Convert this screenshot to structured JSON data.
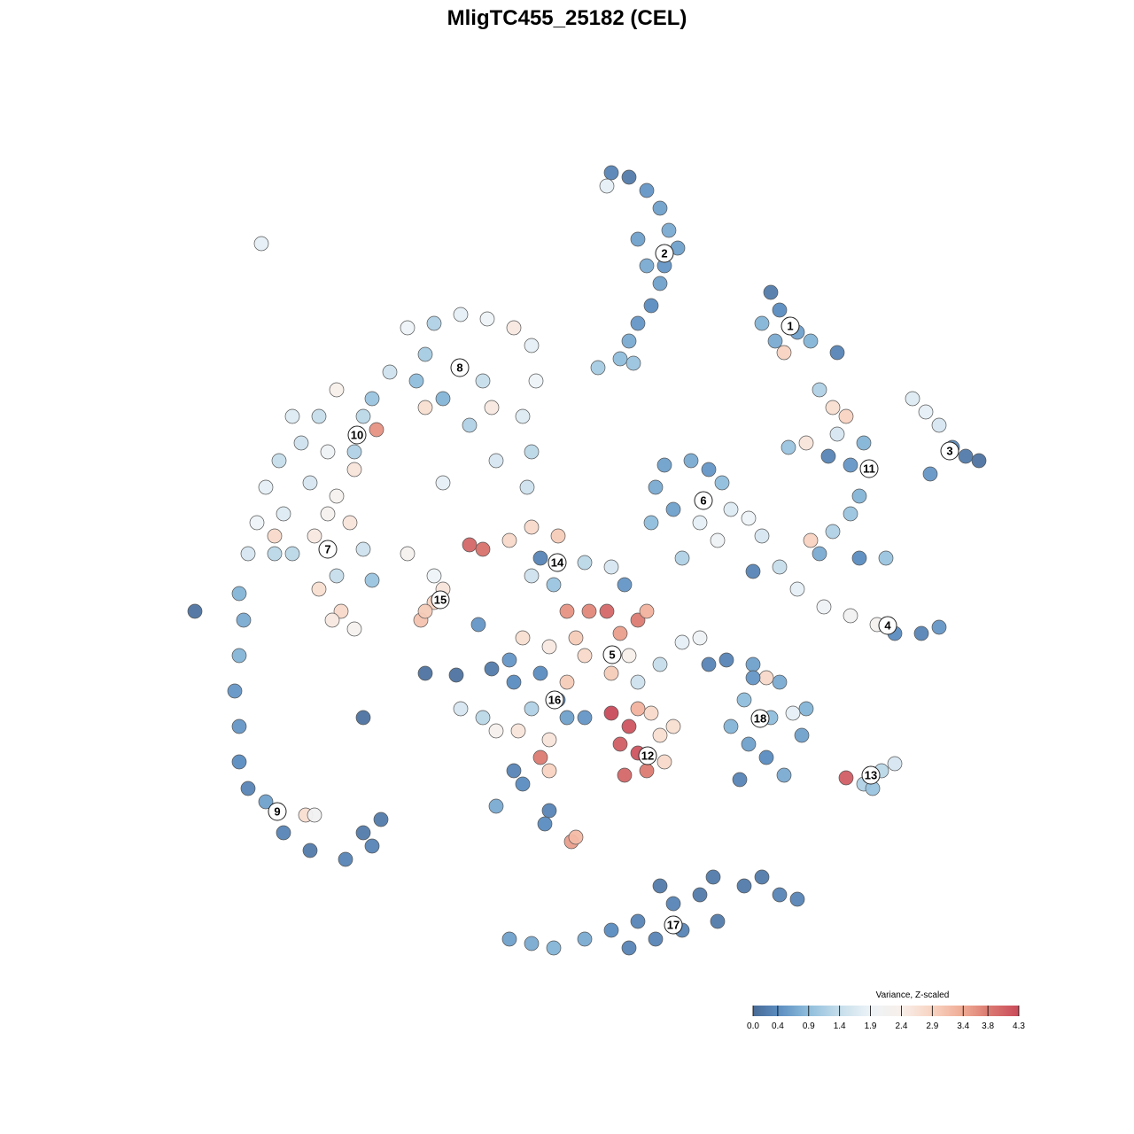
{
  "chart_data": {
    "type": "scatter",
    "title": "MligTC455_25182 (CEL)",
    "xlim": [
      200,
      1120
    ],
    "ylim": [
      1110,
      170
    ],
    "points": [
      [
        690,
        195,
        0.3
      ],
      [
        710,
        200,
        0.2
      ],
      [
        730,
        215,
        0.5
      ],
      [
        745,
        235,
        0.6
      ],
      [
        755,
        260,
        0.7
      ],
      [
        765,
        280,
        0.6
      ],
      [
        750,
        300,
        0.5
      ],
      [
        745,
        320,
        0.6
      ],
      [
        735,
        345,
        0.4
      ],
      [
        720,
        365,
        0.5
      ],
      [
        710,
        385,
        0.7
      ],
      [
        700,
        405,
        0.9
      ],
      [
        675,
        415,
        1.1
      ],
      [
        715,
        410,
        1.0
      ],
      [
        720,
        270,
        0.6
      ],
      [
        730,
        300,
        0.7
      ],
      [
        685,
        210,
        1.8
      ],
      [
        870,
        330,
        0.2
      ],
      [
        880,
        350,
        0.4
      ],
      [
        860,
        365,
        0.8
      ],
      [
        900,
        375,
        0.6
      ],
      [
        875,
        385,
        0.7
      ],
      [
        885,
        398,
        2.9
      ],
      [
        915,
        385,
        0.8
      ],
      [
        945,
        398,
        0.3
      ],
      [
        1030,
        450,
        1.7
      ],
      [
        1045,
        465,
        1.8
      ],
      [
        1060,
        480,
        1.6
      ],
      [
        1075,
        505,
        0.4
      ],
      [
        1090,
        515,
        0.2
      ],
      [
        1105,
        520,
        0.1
      ],
      [
        1050,
        535,
        0.5
      ],
      [
        925,
        440,
        1.2
      ],
      [
        940,
        460,
        2.7
      ],
      [
        955,
        470,
        2.9
      ],
      [
        945,
        490,
        1.6
      ],
      [
        910,
        500,
        2.6
      ],
      [
        890,
        505,
        1.0
      ],
      [
        935,
        515,
        0.3
      ],
      [
        960,
        525,
        0.5
      ],
      [
        975,
        500,
        0.8
      ],
      [
        970,
        560,
        0.8
      ],
      [
        960,
        580,
        1.0
      ],
      [
        940,
        600,
        1.2
      ],
      [
        915,
        610,
        2.9
      ],
      [
        970,
        630,
        0.4
      ],
      [
        1000,
        630,
        1.0
      ],
      [
        925,
        625,
        0.7
      ],
      [
        750,
        525,
        0.6
      ],
      [
        780,
        520,
        0.7
      ],
      [
        800,
        530,
        0.5
      ],
      [
        815,
        545,
        0.9
      ],
      [
        740,
        550,
        0.7
      ],
      [
        760,
        575,
        0.6
      ],
      [
        735,
        590,
        0.9
      ],
      [
        790,
        590,
        1.8
      ],
      [
        810,
        610,
        2.0
      ],
      [
        825,
        575,
        1.7
      ],
      [
        770,
        630,
        1.2
      ],
      [
        845,
        585,
        1.9
      ],
      [
        860,
        605,
        1.6
      ],
      [
        880,
        640,
        1.4
      ],
      [
        900,
        665,
        1.8
      ],
      [
        930,
        685,
        2.0
      ],
      [
        960,
        695,
        2.1
      ],
      [
        990,
        705,
        2.2
      ],
      [
        1010,
        715,
        0.4
      ],
      [
        1040,
        715,
        0.3
      ],
      [
        1060,
        708,
        0.5
      ],
      [
        850,
        645,
        0.3
      ],
      [
        460,
        370,
        1.9
      ],
      [
        490,
        365,
        1.2
      ],
      [
        520,
        355,
        1.8
      ],
      [
        550,
        360,
        1.9
      ],
      [
        580,
        370,
        2.5
      ],
      [
        600,
        390,
        1.8
      ],
      [
        605,
        430,
        1.9
      ],
      [
        590,
        470,
        1.7
      ],
      [
        600,
        510,
        1.3
      ],
      [
        595,
        550,
        1.5
      ],
      [
        560,
        520,
        1.6
      ],
      [
        530,
        480,
        1.2
      ],
      [
        500,
        450,
        0.8
      ],
      [
        470,
        430,
        0.9
      ],
      [
        440,
        420,
        1.5
      ],
      [
        420,
        450,
        1.0
      ],
      [
        480,
        460,
        2.7
      ],
      [
        545,
        430,
        1.4
      ],
      [
        480,
        400,
        1.1
      ],
      [
        555,
        460,
        2.5
      ],
      [
        330,
        470,
        1.7
      ],
      [
        360,
        470,
        1.4
      ],
      [
        380,
        440,
        2.4
      ],
      [
        410,
        470,
        1.3
      ],
      [
        425,
        485,
        3.6
      ],
      [
        400,
        510,
        1.2
      ],
      [
        370,
        510,
        2.0
      ],
      [
        340,
        500,
        1.5
      ],
      [
        315,
        520,
        1.4
      ],
      [
        300,
        550,
        1.8
      ],
      [
        350,
        545,
        1.6
      ],
      [
        380,
        560,
        2.2
      ],
      [
        320,
        580,
        1.7
      ],
      [
        400,
        530,
        2.6
      ],
      [
        290,
        590,
        1.9
      ],
      [
        310,
        605,
        2.8
      ],
      [
        330,
        625,
        1.3
      ],
      [
        355,
        605,
        2.5
      ],
      [
        370,
        580,
        2.2
      ],
      [
        395,
        590,
        2.6
      ],
      [
        410,
        620,
        1.5
      ],
      [
        380,
        650,
        1.4
      ],
      [
        420,
        655,
        1.0
      ],
      [
        360,
        665,
        2.7
      ],
      [
        385,
        690,
        2.8
      ],
      [
        400,
        710,
        2.2
      ],
      [
        375,
        700,
        2.5
      ],
      [
        310,
        625,
        1.3
      ],
      [
        280,
        625,
        1.6
      ],
      [
        460,
        625,
        2.2
      ],
      [
        490,
        650,
        1.9
      ],
      [
        500,
        665,
        2.6
      ],
      [
        490,
        680,
        2.9
      ],
      [
        475,
        700,
        3.1
      ],
      [
        480,
        690,
        3.0
      ],
      [
        220,
        690,
        0.1
      ],
      [
        270,
        670,
        0.8
      ],
      [
        275,
        700,
        0.7
      ],
      [
        270,
        740,
        0.8
      ],
      [
        265,
        780,
        0.5
      ],
      [
        270,
        820,
        0.5
      ],
      [
        270,
        860,
        0.4
      ],
      [
        280,
        890,
        0.3
      ],
      [
        300,
        905,
        0.6
      ],
      [
        345,
        920,
        2.7
      ],
      [
        320,
        940,
        0.3
      ],
      [
        350,
        960,
        0.2
      ],
      [
        390,
        970,
        0.3
      ],
      [
        410,
        940,
        0.2
      ],
      [
        430,
        925,
        0.2
      ],
      [
        420,
        955,
        0.3
      ],
      [
        355,
        920,
        2.1
      ],
      [
        530,
        615,
        4.0
      ],
      [
        545,
        620,
        3.9
      ],
      [
        575,
        610,
        2.8
      ],
      [
        600,
        595,
        2.8
      ],
      [
        630,
        605,
        3.0
      ],
      [
        610,
        630,
        0.3
      ],
      [
        600,
        650,
        1.5
      ],
      [
        660,
        635,
        1.3
      ],
      [
        690,
        640,
        1.6
      ],
      [
        705,
        660,
        0.5
      ],
      [
        625,
        660,
        1.0
      ],
      [
        640,
        690,
        3.6
      ],
      [
        665,
        690,
        3.7
      ],
      [
        685,
        690,
        4.0
      ],
      [
        700,
        715,
        3.5
      ],
      [
        720,
        700,
        3.8
      ],
      [
        730,
        690,
        3.3
      ],
      [
        650,
        720,
        3.0
      ],
      [
        620,
        730,
        2.5
      ],
      [
        590,
        720,
        2.7
      ],
      [
        575,
        745,
        0.5
      ],
      [
        660,
        740,
        2.8
      ],
      [
        690,
        760,
        3.0
      ],
      [
        720,
        770,
        1.5
      ],
      [
        745,
        750,
        1.4
      ],
      [
        770,
        725,
        1.8
      ],
      [
        790,
        720,
        2.0
      ],
      [
        640,
        770,
        3.0
      ],
      [
        710,
        740,
        2.4
      ],
      [
        520,
        800,
        1.6
      ],
      [
        545,
        810,
        1.3
      ],
      [
        560,
        825,
        2.3
      ],
      [
        585,
        825,
        2.6
      ],
      [
        600,
        800,
        1.2
      ],
      [
        630,
        790,
        0.4
      ],
      [
        610,
        760,
        0.4
      ],
      [
        580,
        770,
        0.4
      ],
      [
        555,
        755,
        0.2
      ],
      [
        480,
        760,
        0.1
      ],
      [
        515,
        762,
        0.1
      ],
      [
        640,
        810,
        0.6
      ],
      [
        620,
        835,
        2.6
      ],
      [
        660,
        810,
        0.5
      ],
      [
        690,
        805,
        4.3
      ],
      [
        710,
        820,
        4.2
      ],
      [
        700,
        840,
        4.1
      ],
      [
        720,
        850,
        4.2
      ],
      [
        705,
        875,
        4.0
      ],
      [
        730,
        870,
        3.8
      ],
      [
        750,
        860,
        2.8
      ],
      [
        745,
        830,
        2.7
      ],
      [
        760,
        820,
        2.7
      ],
      [
        735,
        805,
        2.8
      ],
      [
        720,
        800,
        3.3
      ],
      [
        610,
        855,
        3.8
      ],
      [
        620,
        870,
        2.9
      ],
      [
        580,
        870,
        0.3
      ],
      [
        590,
        885,
        0.4
      ],
      [
        560,
        910,
        0.7
      ],
      [
        620,
        915,
        0.3
      ],
      [
        615,
        930,
        0.4
      ],
      [
        645,
        950,
        3.5
      ],
      [
        650,
        945,
        3.2
      ],
      [
        800,
        750,
        0.3
      ],
      [
        820,
        745,
        0.3
      ],
      [
        850,
        750,
        0.6
      ],
      [
        865,
        765,
        2.8
      ],
      [
        880,
        770,
        0.7
      ],
      [
        840,
        790,
        0.9
      ],
      [
        825,
        820,
        0.8
      ],
      [
        845,
        840,
        0.6
      ],
      [
        865,
        855,
        0.4
      ],
      [
        885,
        875,
        0.7
      ],
      [
        905,
        830,
        0.6
      ],
      [
        910,
        800,
        0.8
      ],
      [
        870,
        810,
        0.9
      ],
      [
        835,
        880,
        0.3
      ],
      [
        895,
        805,
        1.8
      ],
      [
        850,
        765,
        0.5
      ],
      [
        955,
        878,
        4.1
      ],
      [
        975,
        885,
        1.2
      ],
      [
        995,
        870,
        1.3
      ],
      [
        1010,
        862,
        1.6
      ],
      [
        985,
        890,
        1.0
      ],
      [
        575,
        1060,
        0.6
      ],
      [
        600,
        1065,
        0.7
      ],
      [
        625,
        1070,
        0.8
      ],
      [
        660,
        1060,
        0.7
      ],
      [
        690,
        1050,
        0.4
      ],
      [
        710,
        1070,
        0.3
      ],
      [
        720,
        1040,
        0.3
      ],
      [
        745,
        1000,
        0.2
      ],
      [
        760,
        1020,
        0.3
      ],
      [
        790,
        1010,
        0.2
      ],
      [
        810,
        1040,
        0.2
      ],
      [
        840,
        1000,
        0.2
      ],
      [
        860,
        990,
        0.2
      ],
      [
        880,
        1010,
        0.3
      ],
      [
        900,
        1015,
        0.3
      ],
      [
        770,
        1050,
        0.3
      ],
      [
        740,
        1060,
        0.3
      ],
      [
        805,
        990,
        0.2
      ],
      [
        295,
        275,
        1.8
      ],
      [
        410,
        810,
        0.1
      ],
      [
        540,
        705,
        0.5
      ],
      [
        500,
        545,
        1.8
      ]
    ],
    "clusters": [
      {
        "label": "1",
        "x": 892,
        "y": 368
      },
      {
        "label": "2",
        "x": 750,
        "y": 286
      },
      {
        "label": "3",
        "x": 1072,
        "y": 509
      },
      {
        "label": "4",
        "x": 1002,
        "y": 706
      },
      {
        "label": "5",
        "x": 691,
        "y": 739
      },
      {
        "label": "6",
        "x": 794,
        "y": 565
      },
      {
        "label": "7",
        "x": 370,
        "y": 620
      },
      {
        "label": "8",
        "x": 519,
        "y": 415
      },
      {
        "label": "9",
        "x": 313,
        "y": 916
      },
      {
        "label": "10",
        "x": 403,
        "y": 491
      },
      {
        "label": "11",
        "x": 981,
        "y": 529
      },
      {
        "label": "12",
        "x": 731,
        "y": 853
      },
      {
        "label": "13",
        "x": 983,
        "y": 875
      },
      {
        "label": "14",
        "x": 629,
        "y": 635
      },
      {
        "label": "15",
        "x": 497,
        "y": 677
      },
      {
        "label": "16",
        "x": 626,
        "y": 790
      },
      {
        "label": "17",
        "x": 760,
        "y": 1044
      },
      {
        "label": "18",
        "x": 858,
        "y": 811
      }
    ],
    "colorbar": {
      "title": "Variance, Z-scaled",
      "lim": [
        0,
        4.3
      ],
      "ticks": [
        {
          "value": 0,
          "label": "0.0"
        },
        0.4,
        0.9,
        1.4,
        1.9,
        2.4,
        2.9,
        3.4,
        3.8,
        4.3
      ],
      "colors": [
        "#496a95",
        "#5a8cc0",
        "#8fbedc",
        "#c6deeb",
        "#edf3f7",
        "#f8efea",
        "#f8d3c1",
        "#efaa94",
        "#dc7b72",
        "#c94a5a"
      ]
    }
  }
}
